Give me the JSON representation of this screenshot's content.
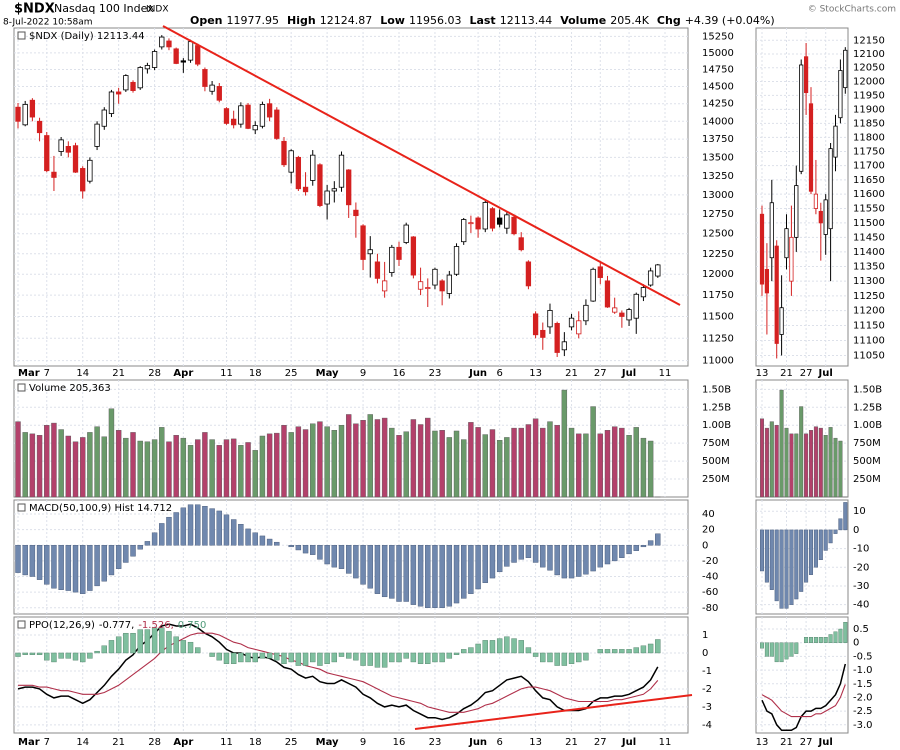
{
  "header": {
    "symbol": "$NDX",
    "name": "Nasdaq 100 Index",
    "exchange": "INDX",
    "timestamp": "8-Jul-2022 10:58am",
    "quote": [
      {
        "label": "Open",
        "value": "11977.95"
      },
      {
        "label": "High",
        "value": "12124.87"
      },
      {
        "label": "Low",
        "value": "11956.03"
      },
      {
        "label": "Last",
        "value": "12113.44"
      },
      {
        "label": "Volume",
        "value": "205.4K"
      },
      {
        "label": "Chg",
        "value": "+4.39 (+0.04%)"
      }
    ],
    "copyright": "© StockCharts.com"
  },
  "chart_data": [
    {
      "type": "candlestick",
      "title": "$NDX (Daily) 12113.44",
      "log": true,
      "grid": true,
      "up_color": "#000000",
      "down_color": "#d42020",
      "categories": [
        "Mar",
        null,
        null,
        null,
        "7",
        null,
        null,
        null,
        null,
        "14",
        null,
        null,
        null,
        null,
        "21",
        null,
        null,
        null,
        null,
        "28",
        null,
        null,
        null,
        "Apr",
        null,
        null,
        null,
        null,
        null,
        "11",
        null,
        null,
        null,
        "18",
        null,
        null,
        null,
        null,
        "25",
        null,
        null,
        null,
        null,
        "May",
        null,
        null,
        null,
        null,
        "9",
        null,
        null,
        null,
        null,
        "16",
        null,
        null,
        null,
        null,
        "23",
        null,
        null,
        null,
        null,
        null,
        "Jun",
        null,
        null,
        "6",
        null,
        null,
        null,
        null,
        "13",
        null,
        null,
        null,
        null,
        "21",
        null,
        null,
        null,
        "27",
        null,
        null,
        null,
        "Jul",
        null,
        null,
        null,
        null,
        "11"
      ],
      "open": [
        14200,
        13950,
        14300,
        14000,
        13800,
        13300,
        13580,
        13650,
        13660,
        13350,
        13180,
        13650,
        13930,
        14110,
        14420,
        14450,
        14560,
        14480,
        14760,
        14780,
        15090,
        15180,
        15060,
        14880,
        14890,
        15110,
        14750,
        14430,
        14500,
        14180,
        14030,
        13960,
        14230,
        13880,
        13930,
        14250,
        14160,
        13720,
        13300,
        13500,
        13100,
        13190,
        13400,
        12880,
        13050,
        13100,
        13330,
        12800,
        12600,
        12250,
        12150,
        11800,
        12020,
        12330,
        12390,
        12460,
        11820,
        11830,
        11870,
        11920,
        11770,
        12000,
        12400,
        12640,
        12700,
        12560,
        12820,
        12700,
        12570,
        12710,
        12450,
        12150,
        11530,
        11340,
        11380,
        11420,
        11120,
        11380,
        11300,
        11450,
        11680,
        12090,
        11920,
        11550,
        11540,
        11460,
        11480,
        11730,
        11870,
        11977.95,
        null
      ],
      "high": [
        14260,
        14290,
        14330,
        14050,
        13850,
        13520,
        13780,
        13720,
        13700,
        13380,
        13500,
        14000,
        14200,
        14450,
        14480,
        14680,
        14590,
        14800,
        14850,
        15050,
        15270,
        15220,
        15080,
        14920,
        15200,
        15140,
        14780,
        14580,
        14550,
        14200,
        14150,
        14270,
        14260,
        14000,
        14280,
        14320,
        14200,
        13780,
        13610,
        13520,
        13300,
        13600,
        13420,
        13130,
        13180,
        13580,
        13340,
        12900,
        12620,
        12470,
        12250,
        12150,
        12360,
        12400,
        12640,
        12470,
        12080,
        11950,
        12080,
        11940,
        12040,
        12380,
        12700,
        12730,
        12720,
        12920,
        12840,
        12810,
        12780,
        12740,
        12520,
        12170,
        11560,
        11430,
        11650,
        11440,
        11320,
        11530,
        11560,
        11700,
        12080,
        12140,
        11980,
        11720,
        11570,
        11600,
        11780,
        11880,
        12080,
        12124.87,
        null
      ],
      "low": [
        13900,
        13930,
        14000,
        13720,
        13300,
        13050,
        13520,
        13500,
        13290,
        12950,
        13150,
        13600,
        13880,
        14060,
        14250,
        14420,
        14410,
        14450,
        14690,
        14740,
        15050,
        15040,
        14830,
        14700,
        14850,
        14800,
        14430,
        14380,
        14270,
        13950,
        13900,
        13910,
        13890,
        13820,
        13900,
        14000,
        13740,
        13370,
        13150,
        13050,
        12990,
        13120,
        12840,
        12680,
        12900,
        13040,
        12700,
        12450,
        12050,
        11960,
        11890,
        11720,
        11970,
        12100,
        12370,
        11950,
        11750,
        11610,
        11820,
        11630,
        11710,
        11980,
        12360,
        12510,
        12450,
        12520,
        12530,
        12580,
        12500,
        12480,
        12280,
        11820,
        11250,
        11120,
        11300,
        11040,
        11050,
        11340,
        11250,
        11400,
        11670,
        11880,
        11600,
        11530,
        11370,
        11390,
        11300,
        11680,
        11850,
        11956.03,
        null
      ],
      "close": [
        14000,
        14240,
        14060,
        13840,
        13320,
        13230,
        13740,
        13570,
        13300,
        13050,
        13460,
        13960,
        14160,
        14420,
        14390,
        14660,
        14440,
        14780,
        14810,
        15020,
        15240,
        15090,
        14840,
        14860,
        15170,
        14830,
        14500,
        14520,
        14300,
        13970,
        13950,
        14220,
        13900,
        13940,
        14240,
        14060,
        13760,
        13400,
        13590,
        13080,
        13040,
        13530,
        12860,
        13050,
        13080,
        13530,
        12870,
        12730,
        12180,
        12300,
        11950,
        11920,
        12330,
        12180,
        12610,
        11990,
        11910,
        11840,
        12060,
        11800,
        11990,
        12340,
        12680,
        12640,
        12560,
        12900,
        12570,
        12620,
        12740,
        12500,
        12300,
        11860,
        11290,
        11260,
        11570,
        11090,
        11210,
        11480,
        11450,
        11630,
        12060,
        11960,
        11610,
        11600,
        11500,
        11580,
        11760,
        11840,
        12040,
        12113.44,
        null
      ],
      "ylim": [
        10940,
        15380
      ],
      "yticks": [
        11000,
        11250,
        11500,
        11750,
        12000,
        12250,
        12500,
        12750,
        13000,
        13250,
        13500,
        13750,
        14000,
        14250,
        14500,
        14750,
        15000,
        15250
      ],
      "zoom_categories": [
        "13",
        null,
        null,
        null,
        null,
        "21",
        null,
        null,
        null,
        "27",
        null,
        null,
        null,
        "Jul",
        null,
        null,
        null,
        null
      ],
      "zoom_ylim": [
        11015,
        12195
      ],
      "zoom_yticks": [
        11050,
        11100,
        11150,
        11200,
        11250,
        11300,
        11350,
        11400,
        11450,
        11500,
        11550,
        11600,
        11650,
        11700,
        11750,
        11800,
        11850,
        11900,
        11950,
        12000,
        12050,
        12100,
        12150
      ]
    },
    {
      "type": "bar",
      "title": "Volume 205,363",
      "up_color": "#6a9a6a",
      "down_color": "#b3416b",
      "values": [
        1050000000,
        900000000,
        880000000,
        860000000,
        1000000000,
        1030000000,
        940000000,
        850000000,
        770000000,
        830000000,
        900000000,
        980000000,
        840000000,
        1230000000,
        930000000,
        820000000,
        900000000,
        780000000,
        770000000,
        800000000,
        970000000,
        770000000,
        860000000,
        820000000,
        720000000,
        800000000,
        900000000,
        800000000,
        720000000,
        800000000,
        810000000,
        720000000,
        760000000,
        650000000,
        850000000,
        880000000,
        890000000,
        1000000000,
        900000000,
        980000000,
        940000000,
        1020000000,
        1050000000,
        980000000,
        930000000,
        1000000000,
        1150000000,
        1020000000,
        1070000000,
        1150000000,
        1080000000,
        1100000000,
        960000000,
        860000000,
        910000000,
        1080000000,
        1010000000,
        1100000000,
        920000000,
        930000000,
        830000000,
        920000000,
        800000000,
        1040000000,
        970000000,
        870000000,
        940000000,
        790000000,
        830000000,
        960000000,
        960000000,
        1010000000,
        1090000000,
        960000000,
        1050000000,
        1000000000,
        1490000000,
        960000000,
        880000000,
        880000000,
        1260000000,
        880000000,
        930000000,
        980000000,
        960000000,
        860000000,
        970000000,
        820000000,
        780000000,
        205363,
        null
      ],
      "ylim": [
        0,
        1630000000
      ],
      "yticks": [
        {
          "value": 250000000,
          "label": "250M"
        },
        {
          "value": 500000000,
          "label": "500M"
        },
        {
          "value": 750000000,
          "label": "750M"
        },
        {
          "value": 1000000000,
          "label": "1.00B"
        },
        {
          "value": 1250000000,
          "label": "1.25B"
        },
        {
          "value": 1500000000,
          "label": "1.50B"
        }
      ],
      "zoom_ylim": [
        0,
        1630000000
      ],
      "zoom_yticks": [
        {
          "value": 250000000,
          "label": "250M"
        },
        {
          "value": 500000000,
          "label": "500M"
        },
        {
          "value": 750000000,
          "label": "750M"
        },
        {
          "value": 1000000000,
          "label": "1.00B"
        },
        {
          "value": 1250000000,
          "label": "1.25B"
        },
        {
          "value": 1500000000,
          "label": "1.50B"
        }
      ]
    },
    {
      "type": "bar",
      "title": "MACD(50,100,9) Hist 14.712",
      "color": "#7088ae",
      "values": [
        -35,
        -38,
        -40,
        -44,
        -50,
        -55,
        -57,
        -58,
        -60,
        -62,
        -58,
        -52,
        -46,
        -38,
        -30,
        -22,
        -14,
        -5,
        5,
        16,
        28,
        36,
        42,
        48,
        52,
        52,
        50,
        47,
        44,
        39,
        33,
        27,
        21,
        16,
        12,
        8,
        4,
        0,
        -2,
        -6,
        -10,
        -12,
        -18,
        -24,
        -28,
        -30,
        -36,
        -42,
        -50,
        -55,
        -62,
        -66,
        -68,
        -72,
        -72,
        -76,
        -78,
        -80,
        -80,
        -80,
        -78,
        -74,
        -68,
        -62,
        -56,
        -48,
        -42,
        -34,
        -27,
        -22,
        -18,
        -16,
        -22,
        -28,
        -32,
        -38,
        -42,
        -42,
        -40,
        -37,
        -33,
        -28,
        -24,
        -20,
        -16,
        -11,
        -7,
        -2,
        6,
        14.712,
        null
      ],
      "ylim": [
        -88,
        58
      ],
      "yticks": [
        40,
        20,
        0,
        -20,
        -40,
        -60,
        -80
      ],
      "zoom_ylim": [
        -45,
        16
      ],
      "zoom_yticks": [
        10,
        0,
        -10,
        -20,
        -30,
        -40
      ]
    },
    {
      "type": "line",
      "title": "PPO(12,26,9)",
      "series": [
        {
          "name": "-0.777,",
          "type": "line",
          "color": "#000000",
          "values": [
            -2.0,
            -1.9,
            -1.9,
            -2.0,
            -2.3,
            -2.5,
            -2.4,
            -2.4,
            -2.6,
            -2.8,
            -2.6,
            -2.2,
            -1.8,
            -1.3,
            -0.9,
            -0.4,
            -0.1,
            0.4,
            0.7,
            1.1,
            1.5,
            1.6,
            1.5,
            1.5,
            1.6,
            1.4,
            1.1,
            0.9,
            0.6,
            0.2,
            0.0,
            0.0,
            -0.2,
            -0.3,
            -0.2,
            -0.3,
            -0.5,
            -0.8,
            -0.9,
            -1.2,
            -1.4,
            -1.3,
            -1.6,
            -1.7,
            -1.7,
            -1.5,
            -1.7,
            -1.9,
            -2.3,
            -2.5,
            -2.8,
            -3.0,
            -2.9,
            -3.0,
            -2.9,
            -3.2,
            -3.4,
            -3.6,
            -3.6,
            -3.7,
            -3.6,
            -3.4,
            -3.1,
            -2.9,
            -2.6,
            -2.2,
            -2.1,
            -1.8,
            -1.5,
            -1.4,
            -1.3,
            -1.6,
            -2.1,
            -2.5,
            -2.6,
            -3.0,
            -3.2,
            -3.2,
            -3.2,
            -3.1,
            -2.7,
            -2.5,
            -2.5,
            -2.4,
            -2.4,
            -2.3,
            -2.1,
            -1.9,
            -1.5,
            -0.777,
            null
          ]
        },
        {
          "name": "-1.526,",
          "type": "line",
          "color": "#b0304a",
          "values": [
            -1.8,
            -1.8,
            -1.8,
            -1.9,
            -1.9,
            -2.0,
            -2.1,
            -2.1,
            -2.2,
            -2.3,
            -2.3,
            -2.3,
            -2.2,
            -2.0,
            -1.8,
            -1.5,
            -1.2,
            -0.9,
            -0.6,
            -0.3,
            0.1,
            0.4,
            0.6,
            0.8,
            1.0,
            1.1,
            1.1,
            1.1,
            1.0,
            0.8,
            0.6,
            0.5,
            0.3,
            0.2,
            0.1,
            0.0,
            -0.1,
            -0.2,
            -0.4,
            -0.5,
            -0.7,
            -0.8,
            -0.9,
            -1.1,
            -1.2,
            -1.3,
            -1.4,
            -1.5,
            -1.6,
            -1.8,
            -2.0,
            -2.2,
            -2.4,
            -2.5,
            -2.6,
            -2.7,
            -2.8,
            -3.0,
            -3.1,
            -3.2,
            -3.3,
            -3.3,
            -3.3,
            -3.2,
            -3.1,
            -2.9,
            -2.8,
            -2.6,
            -2.4,
            -2.2,
            -2.0,
            -1.9,
            -1.9,
            -2.0,
            -2.1,
            -2.3,
            -2.5,
            -2.6,
            -2.7,
            -2.7,
            -2.7,
            -2.7,
            -2.7,
            -2.6,
            -2.6,
            -2.5,
            -2.4,
            -2.3,
            -2.0,
            -1.526,
            null
          ]
        },
        {
          "name": "0.750",
          "type": "bar",
          "color": "#7fbf9f",
          "values": [
            -0.2,
            -0.1,
            -0.1,
            -0.1,
            -0.4,
            -0.5,
            -0.3,
            -0.3,
            -0.4,
            -0.5,
            -0.3,
            0.1,
            0.4,
            0.7,
            0.9,
            1.1,
            1.1,
            1.3,
            1.3,
            1.4,
            1.4,
            1.2,
            0.9,
            0.7,
            0.6,
            0.3,
            0.0,
            -0.2,
            -0.4,
            -0.6,
            -0.6,
            -0.5,
            -0.5,
            -0.5,
            -0.3,
            -0.3,
            -0.4,
            -0.6,
            -0.5,
            -0.7,
            -0.7,
            -0.5,
            -0.7,
            -0.6,
            -0.5,
            -0.2,
            -0.3,
            -0.4,
            -0.7,
            -0.7,
            -0.8,
            -0.8,
            -0.5,
            -0.5,
            -0.3,
            -0.5,
            -0.6,
            -0.6,
            -0.5,
            -0.5,
            -0.3,
            -0.1,
            0.2,
            0.3,
            0.5,
            0.7,
            0.7,
            0.8,
            0.9,
            0.8,
            0.7,
            0.3,
            -0.2,
            -0.5,
            -0.5,
            -0.7,
            -0.7,
            -0.6,
            -0.5,
            -0.4,
            0.0,
            0.2,
            0.2,
            0.2,
            0.2,
            0.2,
            0.3,
            0.4,
            0.5,
            0.75,
            null
          ]
        }
      ],
      "ylim": [
        -4.45,
        2.0
      ],
      "yticks": [
        1,
        0,
        -1,
        -2,
        -3,
        -4
      ],
      "zoom_ylim": [
        -3.3,
        0.94
      ],
      "zoom_yticks": [
        0.5,
        0,
        -0.5,
        {
          "value": -1,
          "label": "-1.0"
        },
        -1.5,
        {
          "value": -2,
          "label": "-2.0"
        },
        -2.5,
        {
          "value": -3,
          "label": "-3.0"
        }
      ]
    }
  ]
}
